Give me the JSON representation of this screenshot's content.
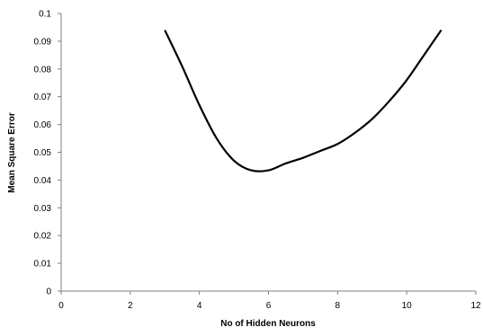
{
  "chart_data": {
    "type": "line",
    "title": "",
    "xlabel": "No of Hidden Neurons",
    "ylabel": "Mean Square Error",
    "xlim": [
      0,
      12
    ],
    "ylim": [
      0,
      0.1
    ],
    "x_ticks": [
      "0",
      "2",
      "4",
      "6",
      "8",
      "10",
      "12"
    ],
    "y_ticks": [
      "0",
      "0.01",
      "0.02",
      "0.03",
      "0.04",
      "0.05",
      "0.06",
      "0.07",
      "0.08",
      "0.09",
      "0.1"
    ],
    "grid": false,
    "legend": "none",
    "series": [
      {
        "color": "#000000",
        "x": [
          3,
          3.5,
          4,
          4.5,
          5,
          5.5,
          6,
          6.5,
          7,
          7.5,
          8,
          8.5,
          9,
          9.5,
          10,
          10.5,
          11
        ],
        "y": [
          0.094,
          0.081,
          0.067,
          0.055,
          0.047,
          0.0435,
          0.0435,
          0.046,
          0.048,
          0.0505,
          0.053,
          0.057,
          0.062,
          0.0685,
          0.076,
          0.085,
          0.094
        ]
      }
    ]
  }
}
